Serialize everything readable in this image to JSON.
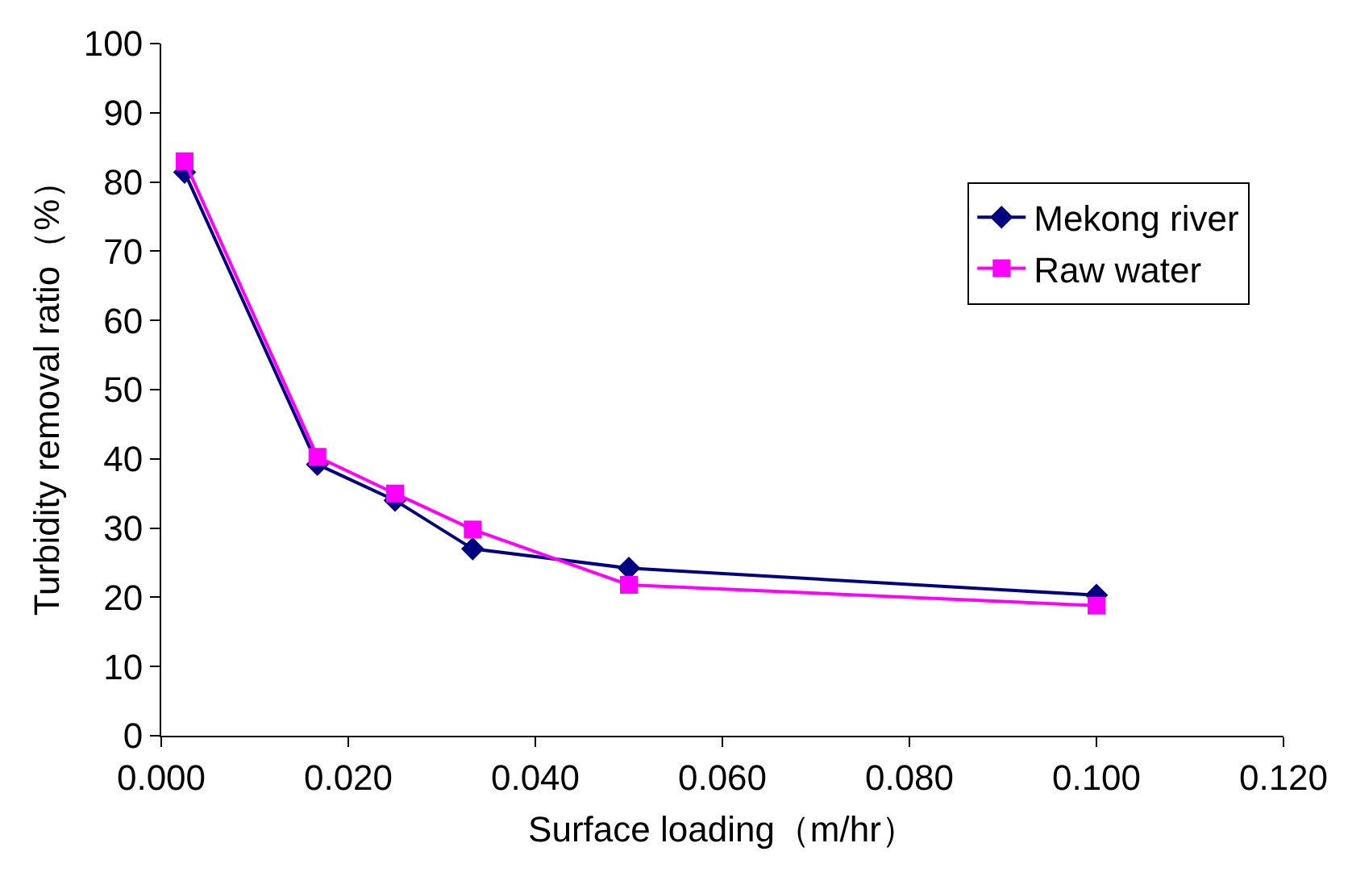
{
  "chart_data": {
    "type": "line",
    "xlabel": "Surface loading（m/hr）",
    "ylabel": "Turbidity removal ratio（%）",
    "x": [
      0.0025,
      0.0167,
      0.025,
      0.0333,
      0.05,
      0.1
    ],
    "series": [
      {
        "name": "Mekong river",
        "color": "#000080",
        "marker": "diamond",
        "values": [
          81.4,
          39.2,
          34,
          27,
          24.2,
          20.3
        ]
      },
      {
        "name": "Raw water",
        "color": "#ff00ff",
        "marker": "square",
        "values": [
          83,
          40.3,
          35,
          29.8,
          21.8,
          18.8
        ]
      }
    ],
    "xlim": [
      0,
      0.12
    ],
    "xticks": [
      {
        "value": 0,
        "label": "0.000"
      },
      {
        "value": 0.02,
        "label": "0.020"
      },
      {
        "value": 0.04,
        "label": "0.040"
      },
      {
        "value": 0.06,
        "label": "0.060"
      },
      {
        "value": 0.08,
        "label": "0.080"
      },
      {
        "value": 0.1,
        "label": "0.100"
      },
      {
        "value": 0.12,
        "label": "0.120"
      }
    ],
    "ylim": [
      0,
      100
    ],
    "yticks": [
      0,
      10,
      20,
      30,
      40,
      50,
      60,
      70,
      80,
      90,
      100
    ],
    "legend": "top right",
    "line_style": "solid"
  }
}
